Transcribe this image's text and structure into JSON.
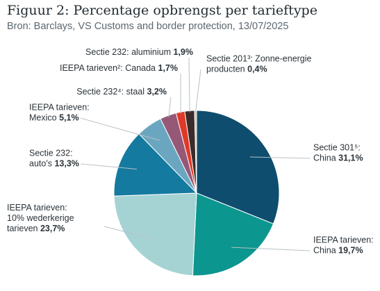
{
  "title": "Figuur 2: Percentage opbrengst per tarieftype",
  "subtitle": "Bron: Barclays, VS Customs and border protection, 13/07/2025",
  "chart_data": {
    "type": "pie",
    "unit": "%",
    "slices": [
      {
        "name": "Sectie 301⁵: China",
        "label_lines": [
          "Sectie 301⁵:",
          "China"
        ],
        "value": 31.1,
        "value_text": "31,1%",
        "color": "#0e4d6e"
      },
      {
        "name": "IEEPA tarieven: China",
        "label_lines": [
          "IEEPA tarieven:",
          "China"
        ],
        "value": 19.7,
        "value_text": "19,7%",
        "color": "#0b968f"
      },
      {
        "name": "IEEPA tarieven: 10% wederkerige tarieven",
        "label_lines": [
          "IEEPA tarieven:",
          "10% wederkerige",
          "tarieven"
        ],
        "value": 23.7,
        "value_text": "23,7%",
        "color": "#a5d3d4"
      },
      {
        "name": "Sectie 232: auto's",
        "label_lines": [
          "Sectie 232:",
          "auto's"
        ],
        "value": 13.3,
        "value_text": "13,3%",
        "color": "#157aa0"
      },
      {
        "name": "IEEPA tarieven: Mexico",
        "label_lines": [
          "IEEPA tarieven:",
          "Mexico"
        ],
        "value": 5.1,
        "value_text": "5,1%",
        "color": "#6aa6c0"
      },
      {
        "name": "Sectie 232⁴: staal",
        "label_lines": [
          "Sectie 232⁴: staal"
        ],
        "value": 3.2,
        "value_text": "3,2%",
        "color": "#965877"
      },
      {
        "name": "IEEPA tarieven²: Canada",
        "label_lines": [
          "IEEPA tarieven²: Canada"
        ],
        "value": 1.7,
        "value_text": "1,7%",
        "color": "#de3a27"
      },
      {
        "name": "Sectie 232: aluminium",
        "label_lines": [
          "Sectie 232: aluminium"
        ],
        "value": 1.9,
        "value_text": "1,9%",
        "color": "#3b2b2a"
      },
      {
        "name": "Sectie 201³: Zonne-energie producten",
        "label_lines": [
          "Sectie 201³: Zonne-energie",
          "producten"
        ],
        "value": 0.4,
        "value_text": "0,4%",
        "color": "#cdbfa0"
      }
    ]
  }
}
